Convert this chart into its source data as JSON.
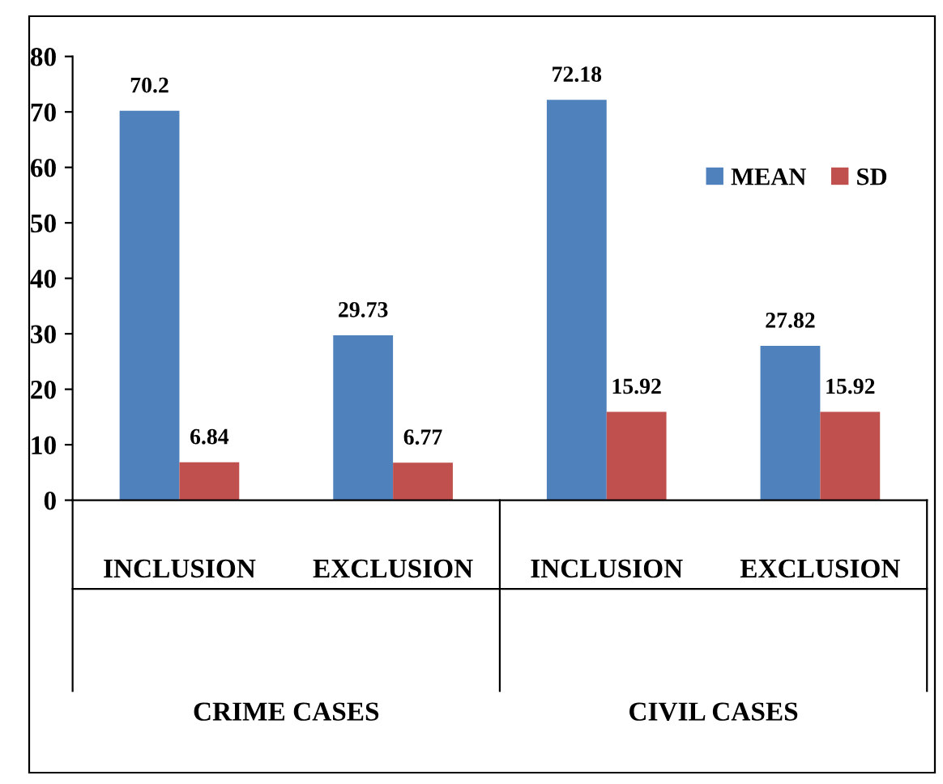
{
  "chart_data": {
    "type": "bar",
    "categories": [
      "INCLUSION",
      "EXCLUSION",
      "INCLUSION",
      "EXCLUSION"
    ],
    "series": [
      {
        "name": "MEAN",
        "color": "#4f81bd",
        "values": [
          70.2,
          29.73,
          72.18,
          27.82
        ]
      },
      {
        "name": "SD",
        "color": "#c0504d",
        "values": [
          6.84,
          6.77,
          15.92,
          15.92
        ]
      }
    ],
    "annotations": [
      "CRIME CASES",
      "CIVIL CASES"
    ],
    "ylim": [
      0,
      80
    ],
    "yticks": [
      0,
      10,
      20,
      30,
      40,
      50,
      60,
      70,
      80
    ],
    "data_labels": true,
    "grid": false,
    "legend": "upper right"
  }
}
